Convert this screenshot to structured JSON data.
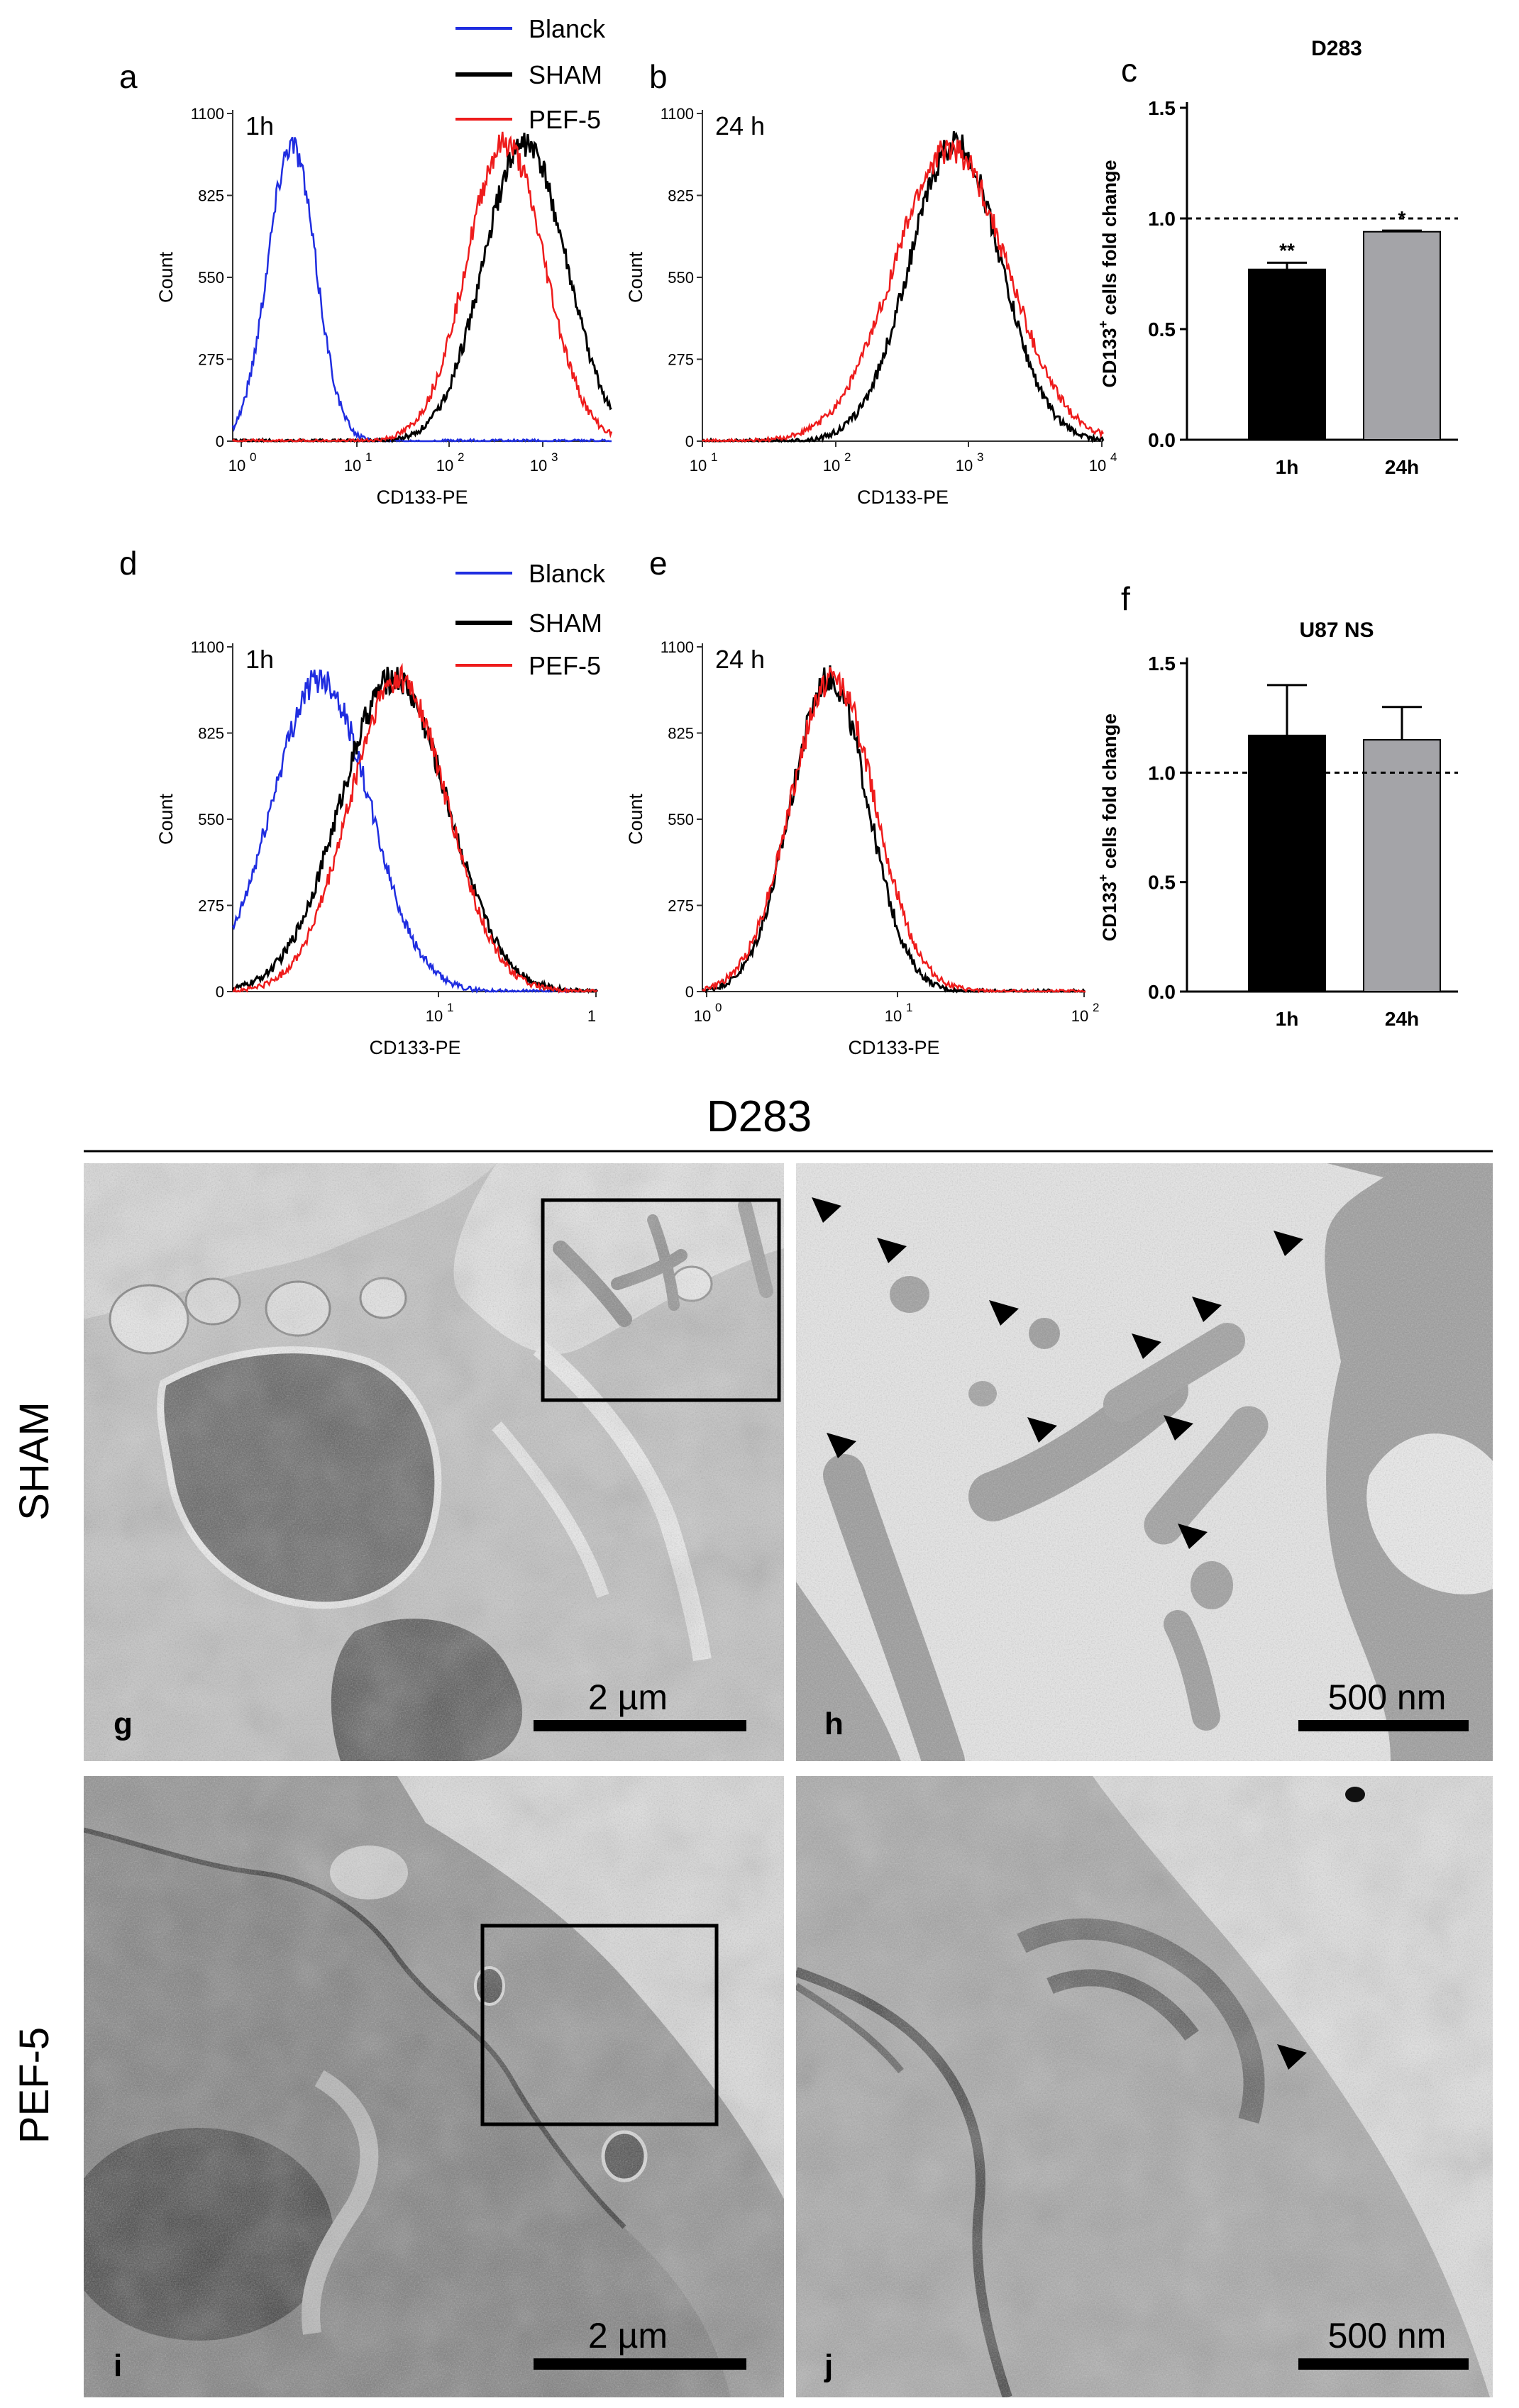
{
  "legend": {
    "blank": "Blanck",
    "sham": "SHAM",
    "pef": "PEF-5"
  },
  "colors": {
    "blank": "#1f2de0",
    "sham": "#000000",
    "pef": "#ee1c1c",
    "bar1h": "#000000",
    "bar24h": "#a4a4a8"
  },
  "histograms": {
    "a": {
      "label": "a",
      "time": "1h",
      "ylabel": "Count",
      "xlabel": "CD133-PE",
      "yticks": [
        "0",
        "275",
        "550",
        "825",
        "1100"
      ],
      "xticks": [
        [
          "10",
          "0"
        ],
        [
          "10",
          "1"
        ],
        [
          "10",
          "2"
        ],
        [
          "10",
          "3"
        ]
      ]
    },
    "b": {
      "label": "b",
      "time": "24 h",
      "ylabel": "Count",
      "xlabel": "CD133-PE",
      "yticks": [
        "0",
        "275",
        "550",
        "825",
        "1100"
      ],
      "xticks": [
        [
          "10",
          "1"
        ],
        [
          "10",
          "2"
        ],
        [
          "10",
          "3"
        ],
        [
          "10",
          "4"
        ]
      ]
    },
    "d": {
      "label": "d",
      "time": "1h",
      "ylabel": "Count",
      "xlabel": "CD133-PE",
      "yticks": [
        "0",
        "275",
        "550",
        "825",
        "1100"
      ],
      "xticks": [
        [
          "10",
          "1"
        ],
        [
          "1",
          ""
        ]
      ]
    },
    "e": {
      "label": "e",
      "time": "24 h",
      "ylabel": "Count",
      "xlabel": "CD133-PE",
      "yticks": [
        "0",
        "275",
        "550",
        "825",
        "1100"
      ],
      "xticks": [
        [
          "10",
          "0"
        ],
        [
          "10",
          "1"
        ],
        [
          "10",
          "2"
        ]
      ]
    }
  },
  "chart_data": [
    {
      "panel": "a",
      "type": "line",
      "title": "",
      "xlabel": "CD133-PE",
      "ylabel": "Count",
      "xscale": "log",
      "xlim": [
        1,
        3000
      ],
      "ylim": [
        0,
        1100
      ],
      "series": [
        {
          "name": "Blanck",
          "peak_x": 3.5,
          "peak_y": 1000,
          "spread": 0.22
        },
        {
          "name": "SHAM",
          "peak_x": 500,
          "peak_y": 1000,
          "spread": 0.38
        },
        {
          "name": "PEF-5",
          "peak_x": 330,
          "peak_y": 1000,
          "spread": 0.36
        }
      ]
    },
    {
      "panel": "b",
      "type": "line",
      "title": "",
      "xlabel": "CD133-PE",
      "ylabel": "Count",
      "xscale": "log",
      "xlim": [
        10,
        10000
      ],
      "ylim": [
        0,
        1100
      ],
      "series": [
        {
          "name": "SHAM",
          "peak_x": 780,
          "peak_y": 1000,
          "spread": 0.34
        },
        {
          "name": "PEF-5",
          "peak_x": 720,
          "peak_y": 980,
          "spread": 0.42
        }
      ]
    },
    {
      "panel": "c",
      "type": "bar",
      "title": "D283",
      "xlabel": "",
      "ylabel": "CD133+ cells fold change",
      "categories": [
        "1h",
        "24h"
      ],
      "values": [
        0.77,
        0.94
      ],
      "errors": [
        0.03,
        0.005
      ],
      "significance": [
        "**",
        "*"
      ],
      "reference_line": 1.0,
      "ylim": [
        0,
        1.5
      ],
      "yticks": [
        "0.0",
        "0.5",
        "1.0",
        "1.5"
      ]
    },
    {
      "panel": "d",
      "type": "line",
      "title": "",
      "xlabel": "CD133-PE",
      "ylabel": "Count",
      "xscale": "log",
      "ylim": [
        0,
        1100
      ],
      "series": [
        {
          "name": "Blanck",
          "peak_x": 2.3,
          "peak_y": 1000,
          "spread": 0.2
        },
        {
          "name": "SHAM",
          "peak_x": 4.6,
          "peak_y": 1000,
          "spread": 0.22
        },
        {
          "name": "PEF-5",
          "peak_x": 4.8,
          "peak_y": 1000,
          "spread": 0.2
        }
      ]
    },
    {
      "panel": "e",
      "type": "line",
      "title": "",
      "xlabel": "CD133-PE",
      "ylabel": "Count",
      "xscale": "log",
      "xlim": [
        1,
        100
      ],
      "ylim": [
        0,
        1100
      ],
      "series": [
        {
          "name": "SHAM",
          "peak_x": 4.6,
          "peak_y": 1000,
          "spread": 0.2
        },
        {
          "name": "PEF-5",
          "peak_x": 4.8,
          "peak_y": 1000,
          "spread": 0.22
        }
      ]
    },
    {
      "panel": "f",
      "type": "bar",
      "title": "U87 NS",
      "xlabel": "",
      "ylabel": "CD133+ cells fold change",
      "categories": [
        "1h",
        "24h"
      ],
      "values": [
        1.17,
        1.15
      ],
      "errors": [
        0.23,
        0.15
      ],
      "significance": [
        "",
        ""
      ],
      "reference_line": 1.0,
      "ylim": [
        0,
        1.5
      ],
      "yticks": [
        "0.0",
        "0.5",
        "1.0",
        "1.5"
      ]
    }
  ],
  "bar_panels": {
    "c": {
      "label": "c",
      "title": "D283",
      "ylabel": "CD133",
      "ylabel_sup": "+",
      "ylabel_rest": " cells fold change"
    },
    "f": {
      "label": "f",
      "title": "U87 NS",
      "ylabel": "CD133",
      "ylabel_sup": "+",
      "ylabel_rest": " cells fold change"
    }
  },
  "section_title": "D283",
  "rows": {
    "sham": "SHAM",
    "pef": "PEF-5"
  },
  "micrographs": {
    "g": {
      "label": "g",
      "scale": "2 µm"
    },
    "h": {
      "label": "h",
      "scale": "500 nm"
    },
    "i": {
      "label": "i",
      "scale": "2 µm"
    },
    "j": {
      "label": "j",
      "scale": "500 nm"
    }
  }
}
